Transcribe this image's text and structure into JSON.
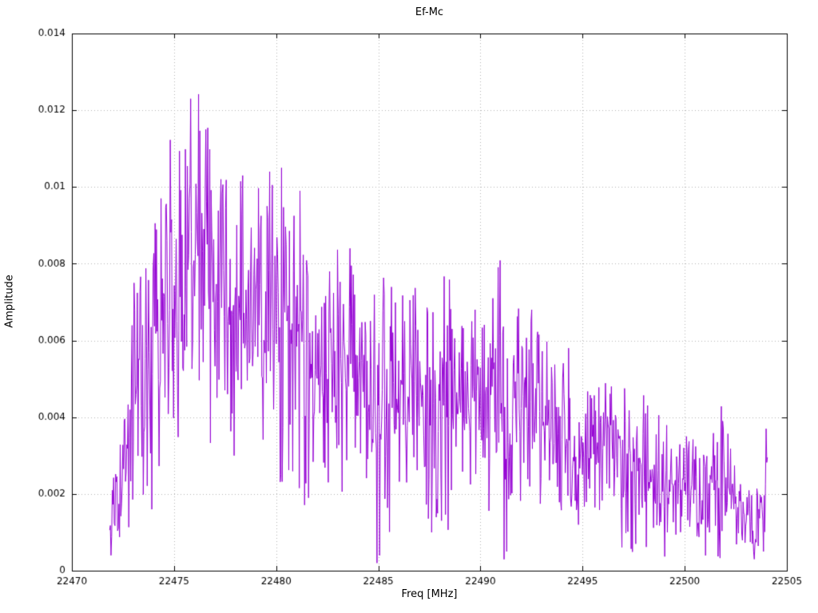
{
  "chart_data": {
    "type": "line",
    "title": "Ef-Mc",
    "xlabel": "Freq [MHz]",
    "ylabel": "Amplitude",
    "xlim": [
      22470,
      22505
    ],
    "ylim": [
      0,
      0.014
    ],
    "xticks": [
      22470,
      22475,
      22480,
      22485,
      22490,
      22495,
      22500,
      22505
    ],
    "xtick_labels": [
      "22470",
      "22475",
      "22480",
      "22485",
      "22490",
      "22495",
      "22500",
      "22505"
    ],
    "yticks": [
      0,
      0.002,
      0.004,
      0.006,
      0.008,
      0.01,
      0.012,
      0.014
    ],
    "ytick_labels": [
      "0",
      "0.002",
      "0.004",
      "0.006",
      "0.008",
      "0.01",
      "0.012",
      "0.014"
    ],
    "grid": "dotted",
    "legend": "none",
    "colors": {
      "line": "#9400d3",
      "grid": "#b3b3b3",
      "axis": "#000000"
    },
    "data_range": [
      22471.85,
      22504.05
    ],
    "envelope": [
      [
        22471.85,
        0.0008,
        0.0006
      ],
      [
        22472.3,
        0.002,
        0.0012
      ],
      [
        22473.0,
        0.0042,
        0.0022
      ],
      [
        22473.6,
        0.005,
        0.0024
      ],
      [
        22474.3,
        0.0062,
        0.0028
      ],
      [
        22475.0,
        0.0075,
        0.003
      ],
      [
        22475.8,
        0.0082,
        0.0038
      ],
      [
        22476.6,
        0.0078,
        0.0034
      ],
      [
        22477.5,
        0.0072,
        0.0028
      ],
      [
        22478.5,
        0.0066,
        0.0028
      ],
      [
        22479.5,
        0.0062,
        0.003
      ],
      [
        22480.2,
        0.0062,
        0.004
      ],
      [
        22481.0,
        0.0058,
        0.0036
      ],
      [
        22482.0,
        0.005,
        0.002
      ],
      [
        22483.0,
        0.0052,
        0.0026
      ],
      [
        22483.6,
        0.0054,
        0.0028
      ],
      [
        22484.5,
        0.0046,
        0.002
      ],
      [
        22485.1,
        0.004,
        0.0032
      ],
      [
        22486.0,
        0.0046,
        0.0022
      ],
      [
        22487.0,
        0.0046,
        0.0024
      ],
      [
        22488.0,
        0.0044,
        0.0028
      ],
      [
        22489.0,
        0.0042,
        0.0022
      ],
      [
        22490.0,
        0.0046,
        0.0024
      ],
      [
        22490.7,
        0.005,
        0.0022
      ],
      [
        22491.3,
        0.0042,
        0.0032
      ],
      [
        22492.3,
        0.0047,
        0.002
      ],
      [
        22493.2,
        0.004,
        0.0018
      ],
      [
        22494.2,
        0.0036,
        0.0019
      ],
      [
        22495.0,
        0.003,
        0.0015
      ],
      [
        22496.2,
        0.0032,
        0.0016
      ],
      [
        22497.2,
        0.0027,
        0.0017
      ],
      [
        22498.0,
        0.0025,
        0.0016
      ],
      [
        22499.0,
        0.0022,
        0.0013
      ],
      [
        22500.0,
        0.0022,
        0.0013
      ],
      [
        22500.9,
        0.002,
        0.0012
      ],
      [
        22501.8,
        0.0023,
        0.0016
      ],
      [
        22502.6,
        0.0016,
        0.001
      ],
      [
        22503.3,
        0.0012,
        0.0009
      ],
      [
        22503.8,
        0.0015,
        0.0014
      ],
      [
        22504.05,
        0.0028,
        0.001
      ]
    ],
    "peaks": [
      [
        22473.05,
        0.0075
      ],
      [
        22474.35,
        0.0097
      ],
      [
        22475.82,
        0.0123
      ],
      [
        22476.55,
        0.0115
      ],
      [
        22477.3,
        0.0102
      ],
      [
        22478.35,
        0.0103
      ],
      [
        22479.55,
        0.0095
      ],
      [
        22480.25,
        0.0105
      ],
      [
        22481.15,
        0.0099
      ],
      [
        22482.6,
        0.0078
      ],
      [
        22483.6,
        0.0084
      ],
      [
        22486.3,
        0.0065
      ],
      [
        22488.6,
        0.0063
      ],
      [
        22490.6,
        0.0071
      ],
      [
        22491.1,
        0.0062
      ],
      [
        22492.5,
        0.0068
      ],
      [
        22494.3,
        0.0058
      ],
      [
        22496.4,
        0.0048
      ],
      [
        22498.1,
        0.0041
      ],
      [
        22500.1,
        0.0035
      ],
      [
        22501.85,
        0.0039
      ],
      [
        22504.0,
        0.0037
      ]
    ],
    "dips": [
      [
        22471.9,
        0.0004
      ],
      [
        22473.9,
        0.0016
      ],
      [
        22477.95,
        0.003
      ],
      [
        22481.6,
        0.0019
      ],
      [
        22485.05,
        0.0004
      ],
      [
        22487.6,
        0.001
      ],
      [
        22491.3,
        0.0005
      ],
      [
        22494.8,
        0.0012
      ],
      [
        22497.6,
        0.0007
      ],
      [
        22500.6,
        0.0009
      ],
      [
        22503.4,
        0.0003
      ],
      [
        22503.85,
        0.0005
      ]
    ],
    "noise": {
      "seed": 12345,
      "n_points": 1000,
      "amount": 1.5,
      "clamp_min": 0.0002,
      "clamp_max": 0.0126
    }
  }
}
